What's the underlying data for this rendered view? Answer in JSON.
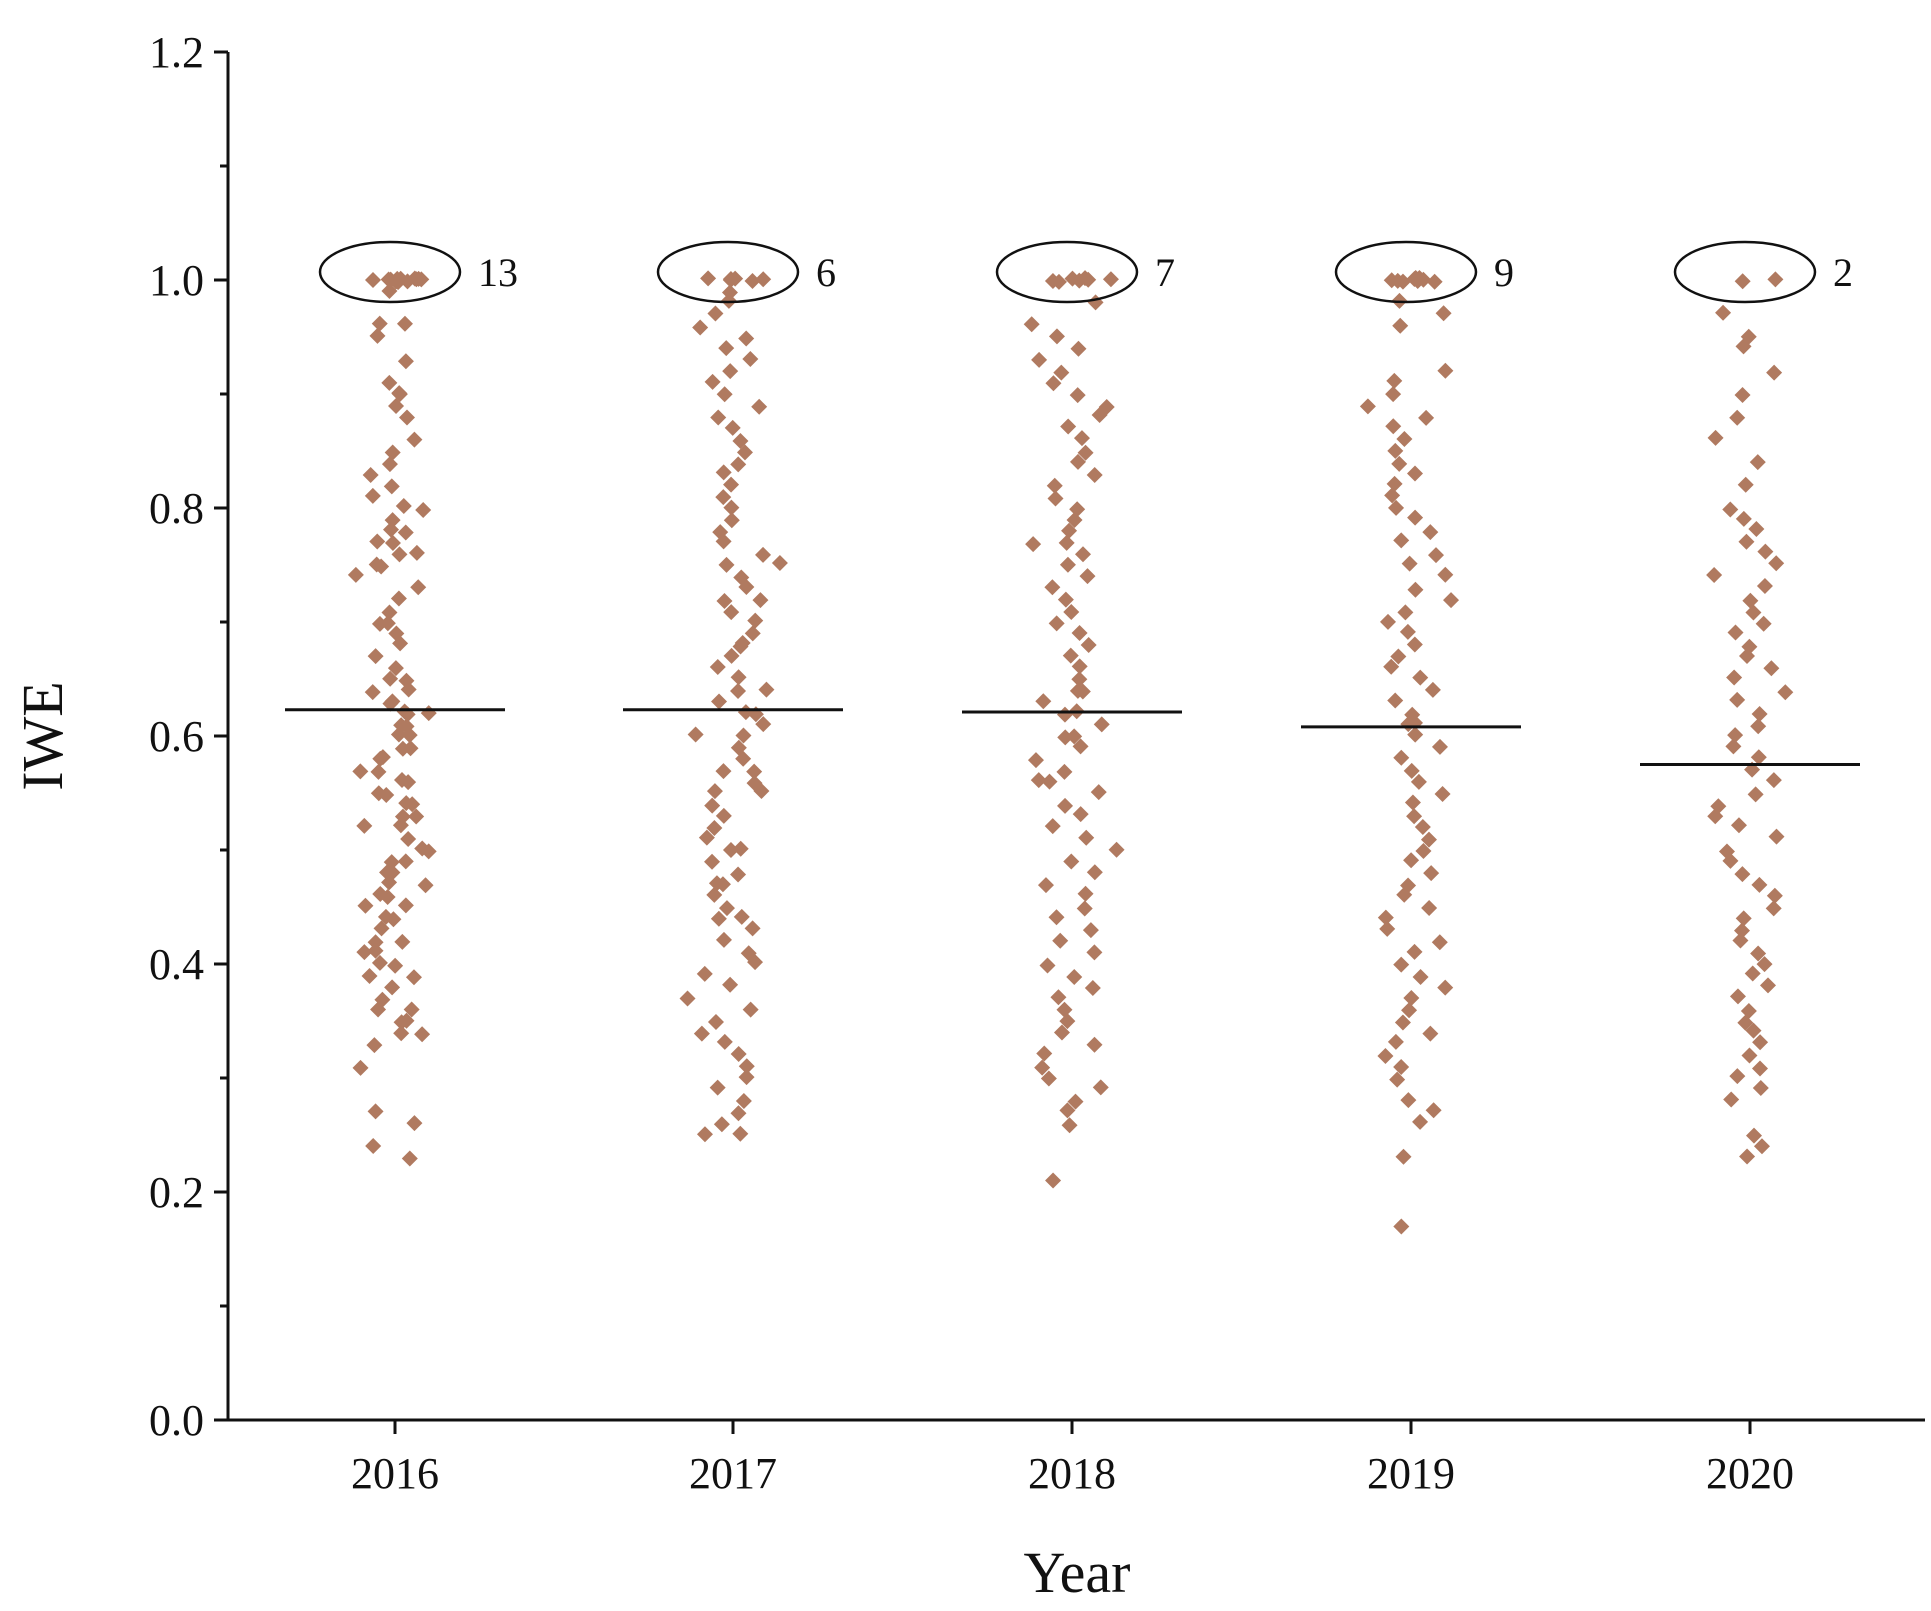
{
  "chart_data": {
    "type": "scatter",
    "xlabel": "Year",
    "ylabel": "IWE",
    "categories": [
      "2016",
      "2017",
      "2018",
      "2019",
      "2020"
    ],
    "ylim": [
      0.0,
      1.2
    ],
    "yticks": [
      "0.0",
      "0.2",
      "0.4",
      "0.6",
      "0.8",
      "1.0",
      "1.2"
    ],
    "grid": false,
    "marker": "diamond",
    "marker_color": "#B07A60",
    "means": [
      0.623,
      0.623,
      0.621,
      0.608,
      0.575
    ],
    "annotations": [
      {
        "category": "2016",
        "label": "13",
        "y": 1.0
      },
      {
        "category": "2017",
        "label": "6",
        "y": 1.0
      },
      {
        "category": "2018",
        "label": "7",
        "y": 1.0
      },
      {
        "category": "2019",
        "label": "9",
        "y": 1.0
      },
      {
        "category": "2020",
        "label": "2",
        "y": 1.0
      }
    ],
    "series": [
      {
        "category": "2016",
        "values": [
          1.0,
          1.0,
          1.0,
          1.0,
          1.0,
          1.0,
          1.0,
          1.0,
          1.0,
          1.0,
          1.0,
          1.0,
          1.0,
          0.99,
          0.96,
          0.96,
          0.95,
          0.93,
          0.91,
          0.9,
          0.9,
          0.89,
          0.88,
          0.86,
          0.85,
          0.84,
          0.83,
          0.82,
          0.81,
          0.8,
          0.8,
          0.79,
          0.78,
          0.78,
          0.77,
          0.77,
          0.76,
          0.76,
          0.75,
          0.75,
          0.74,
          0.73,
          0.72,
          0.71,
          0.7,
          0.7,
          0.69,
          0.68,
          0.67,
          0.66,
          0.65,
          0.65,
          0.64,
          0.64,
          0.63,
          0.63,
          0.62,
          0.62,
          0.62,
          0.61,
          0.61,
          0.6,
          0.6,
          0.59,
          0.59,
          0.58,
          0.58,
          0.57,
          0.57,
          0.56,
          0.56,
          0.55,
          0.55,
          0.54,
          0.54,
          0.53,
          0.53,
          0.52,
          0.52,
          0.51,
          0.5,
          0.5,
          0.49,
          0.49,
          0.48,
          0.48,
          0.47,
          0.47,
          0.46,
          0.46,
          0.45,
          0.45,
          0.44,
          0.44,
          0.43,
          0.42,
          0.42,
          0.41,
          0.41,
          0.4,
          0.4,
          0.39,
          0.39,
          0.38,
          0.37,
          0.36,
          0.36,
          0.35,
          0.35,
          0.34,
          0.34,
          0.33,
          0.31,
          0.27,
          0.26,
          0.24,
          0.23
        ]
      },
      {
        "category": "2017",
        "values": [
          1.0,
          1.0,
          1.0,
          1.0,
          1.0,
          1.0,
          0.99,
          0.98,
          0.97,
          0.96,
          0.95,
          0.94,
          0.93,
          0.92,
          0.91,
          0.9,
          0.89,
          0.88,
          0.87,
          0.86,
          0.85,
          0.84,
          0.83,
          0.82,
          0.81,
          0.8,
          0.79,
          0.78,
          0.77,
          0.76,
          0.75,
          0.75,
          0.74,
          0.73,
          0.72,
          0.72,
          0.71,
          0.7,
          0.69,
          0.68,
          0.68,
          0.67,
          0.66,
          0.65,
          0.64,
          0.64,
          0.63,
          0.62,
          0.62,
          0.61,
          0.6,
          0.6,
          0.59,
          0.58,
          0.57,
          0.57,
          0.56,
          0.55,
          0.55,
          0.54,
          0.53,
          0.52,
          0.51,
          0.5,
          0.5,
          0.49,
          0.48,
          0.47,
          0.47,
          0.46,
          0.45,
          0.44,
          0.44,
          0.43,
          0.42,
          0.41,
          0.4,
          0.39,
          0.38,
          0.37,
          0.36,
          0.35,
          0.34,
          0.33,
          0.32,
          0.31,
          0.3,
          0.29,
          0.28,
          0.27,
          0.26,
          0.25,
          0.25
        ]
      },
      {
        "category": "2018",
        "values": [
          1.0,
          1.0,
          1.0,
          1.0,
          1.0,
          1.0,
          1.0,
          0.98,
          0.96,
          0.95,
          0.94,
          0.93,
          0.92,
          0.91,
          0.9,
          0.89,
          0.88,
          0.87,
          0.86,
          0.85,
          0.84,
          0.83,
          0.82,
          0.81,
          0.8,
          0.79,
          0.78,
          0.77,
          0.77,
          0.76,
          0.75,
          0.74,
          0.73,
          0.72,
          0.71,
          0.7,
          0.69,
          0.68,
          0.67,
          0.66,
          0.65,
          0.64,
          0.64,
          0.63,
          0.62,
          0.62,
          0.61,
          0.6,
          0.6,
          0.59,
          0.58,
          0.57,
          0.56,
          0.56,
          0.55,
          0.54,
          0.53,
          0.52,
          0.51,
          0.5,
          0.49,
          0.48,
          0.47,
          0.46,
          0.45,
          0.44,
          0.43,
          0.42,
          0.41,
          0.4,
          0.39,
          0.38,
          0.37,
          0.36,
          0.35,
          0.34,
          0.33,
          0.32,
          0.31,
          0.3,
          0.29,
          0.28,
          0.27,
          0.26,
          0.21
        ]
      },
      {
        "category": "2019",
        "values": [
          1.0,
          1.0,
          1.0,
          1.0,
          1.0,
          1.0,
          1.0,
          1.0,
          1.0,
          0.98,
          0.97,
          0.96,
          0.92,
          0.91,
          0.9,
          0.89,
          0.88,
          0.87,
          0.86,
          0.85,
          0.84,
          0.83,
          0.82,
          0.81,
          0.8,
          0.79,
          0.78,
          0.77,
          0.76,
          0.75,
          0.74,
          0.73,
          0.72,
          0.71,
          0.7,
          0.69,
          0.68,
          0.67,
          0.66,
          0.65,
          0.64,
          0.63,
          0.62,
          0.61,
          0.61,
          0.6,
          0.59,
          0.58,
          0.57,
          0.56,
          0.55,
          0.54,
          0.53,
          0.52,
          0.51,
          0.5,
          0.49,
          0.48,
          0.47,
          0.46,
          0.45,
          0.44,
          0.43,
          0.42,
          0.41,
          0.4,
          0.39,
          0.38,
          0.37,
          0.36,
          0.35,
          0.34,
          0.33,
          0.32,
          0.31,
          0.3,
          0.28,
          0.27,
          0.26,
          0.23,
          0.17
        ]
      },
      {
        "category": "2020",
        "values": [
          1.0,
          1.0,
          0.97,
          0.95,
          0.94,
          0.92,
          0.9,
          0.88,
          0.86,
          0.84,
          0.82,
          0.8,
          0.79,
          0.78,
          0.77,
          0.76,
          0.75,
          0.74,
          0.73,
          0.72,
          0.71,
          0.7,
          0.69,
          0.68,
          0.67,
          0.66,
          0.65,
          0.64,
          0.63,
          0.62,
          0.61,
          0.6,
          0.59,
          0.58,
          0.57,
          0.56,
          0.55,
          0.54,
          0.53,
          0.52,
          0.51,
          0.5,
          0.49,
          0.48,
          0.47,
          0.46,
          0.45,
          0.44,
          0.43,
          0.42,
          0.41,
          0.4,
          0.39,
          0.38,
          0.37,
          0.36,
          0.35,
          0.34,
          0.33,
          0.32,
          0.31,
          0.3,
          0.29,
          0.28,
          0.25,
          0.24,
          0.23
        ]
      }
    ]
  }
}
